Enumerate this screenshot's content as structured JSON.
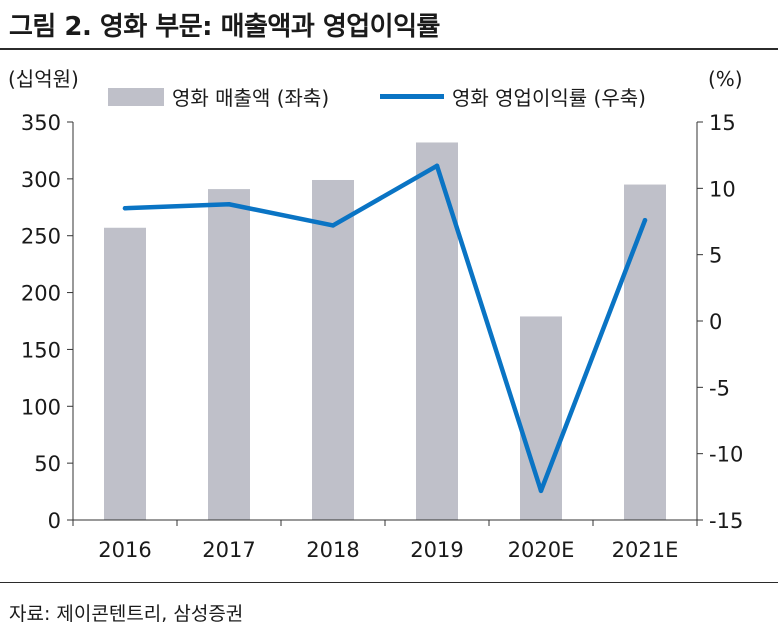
{
  "figure": {
    "title": "그림 2.  영화 부문: 매출액과 영업이익률",
    "source": "자료: 제이콘텐트리, 삼성증권"
  },
  "colors": {
    "bar": "#bfc0c9",
    "line": "#0a74c4",
    "axis": "#333333"
  },
  "chart_data": {
    "type": "bar+line",
    "categories": [
      "2016",
      "2017",
      "2018",
      "2019",
      "2020E",
      "2021E"
    ],
    "series": [
      {
        "name": "영화 매출액 (좌축)",
        "type": "bar",
        "axis": "left",
        "values": [
          257,
          291,
          299,
          332,
          179,
          295
        ]
      },
      {
        "name": "영화 영업이익률 (우축)",
        "type": "line",
        "axis": "right",
        "values": [
          8.5,
          8.8,
          7.2,
          11.7,
          -12.8,
          7.6
        ]
      }
    ],
    "left_axis": {
      "label": "(십억원)",
      "ylim": [
        0,
        350
      ],
      "ticks": [
        "0",
        "50",
        "100",
        "150",
        "200",
        "250",
        "300",
        "350"
      ]
    },
    "right_axis": {
      "label": "(%)",
      "ylim": [
        -15,
        15
      ],
      "ticks": [
        "-15",
        "-10",
        "-5",
        "0",
        "5",
        "10",
        "15"
      ]
    },
    "grid": true,
    "legend_position": "top"
  }
}
